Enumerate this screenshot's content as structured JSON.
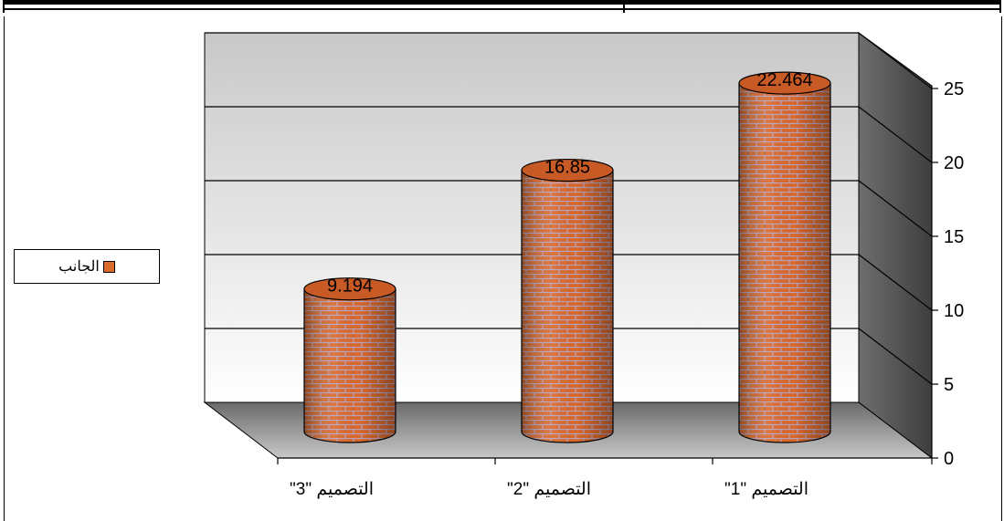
{
  "chart_data": {
    "type": "bar",
    "style": "3d-cylinder",
    "categories": [
      "التصميم \"1\"",
      "التصميم \"2\"",
      "التصميم \"3\""
    ],
    "series": [
      {
        "name": "الجانب",
        "values": [
          22.464,
          16.85,
          9.194
        ]
      }
    ],
    "data_labels": [
      "22.464",
      "16.85",
      "9.194"
    ],
    "y_ticks": [
      "0",
      "5",
      "10",
      "15",
      "20",
      "25"
    ],
    "ylim": [
      0,
      25
    ],
    "y_axis_side": "right",
    "category_order": "right-to-left",
    "grid": true,
    "legend": "left",
    "bar_color": "#d96a2c",
    "wall_color": "#d8d8d8",
    "side_wall_color": "#5a5a5a",
    "floor_color": "#8a8a8a"
  },
  "legend": {
    "label": "الجانب"
  }
}
